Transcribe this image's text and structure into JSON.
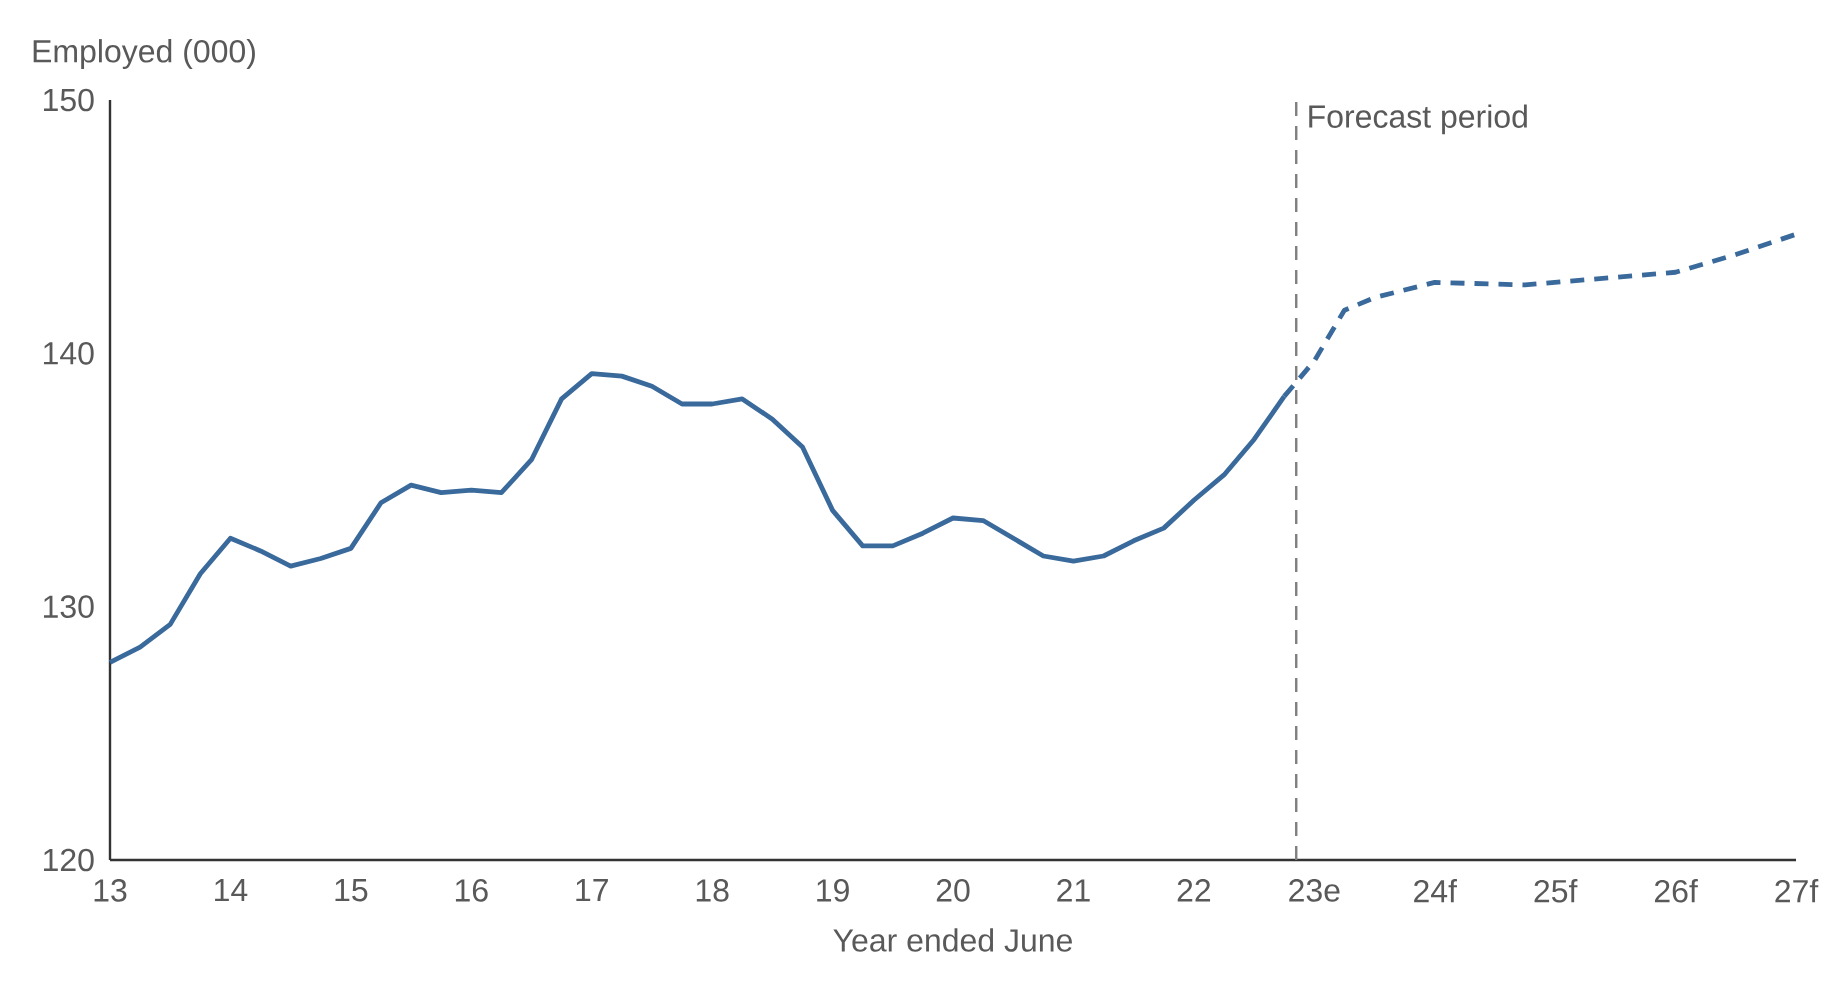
{
  "chart_data": {
    "type": "line",
    "xlabel": "Year ended June",
    "ylabel": "Employed (000)",
    "xlim": [
      13,
      27
    ],
    "ylim": [
      120,
      150
    ],
    "xticks": [
      13,
      14,
      15,
      16,
      17,
      18,
      19,
      20,
      21,
      22,
      {
        "value": 23,
        "label": "23e"
      },
      {
        "value": 24,
        "label": "24f"
      },
      {
        "value": 25,
        "label": "25f"
      },
      {
        "value": 26,
        "label": "26f"
      },
      {
        "value": 27,
        "label": "27f"
      }
    ],
    "yticks": [
      120,
      130,
      140,
      150
    ],
    "grid": false,
    "series": [
      {
        "color": "#3a6a9b",
        "line_style": "solid",
        "x": [
          13,
          13.25,
          13.5,
          13.75,
          14,
          14.25,
          14.5,
          14.75,
          15,
          15.25,
          15.5,
          15.75,
          16,
          16.25,
          16.5,
          16.75,
          17,
          17.25,
          17.5,
          17.75,
          18,
          18.25,
          18.5,
          18.75,
          19,
          19.25,
          19.5,
          19.75,
          20,
          20.25,
          20.5,
          20.75,
          21,
          21.25,
          21.5,
          21.75,
          22,
          22.25,
          22.5,
          22.75
        ],
        "values": [
          127.8,
          128.4,
          129.3,
          131.3,
          132.7,
          132.2,
          131.6,
          131.9,
          132.3,
          134.1,
          134.8,
          134.5,
          134.6,
          134.5,
          135.8,
          138.2,
          139.2,
          139.1,
          138.7,
          138.0,
          138.0,
          138.2,
          137.4,
          136.3,
          133.8,
          132.4,
          132.4,
          132.9,
          133.5,
          133.4,
          132.7,
          132.0,
          131.8,
          132.0,
          132.6,
          133.1,
          134.2,
          135.2,
          136.6,
          138.3
        ]
      },
      {
        "color": "#3a6a9b",
        "line_style": "dashed",
        "x": [
          22.75,
          23,
          23.25,
          23.5,
          24,
          24.75,
          25.5,
          26,
          26.5,
          27
        ],
        "values": [
          138.3,
          139.7,
          141.7,
          142.2,
          142.8,
          142.7,
          143.0,
          143.2,
          143.9,
          144.7
        ]
      }
    ],
    "ref_lines": [
      {
        "axis": "x",
        "value": 22.85,
        "label": "Forecast period",
        "color": "#7f7f7f",
        "line_style": "dashed"
      }
    ]
  }
}
